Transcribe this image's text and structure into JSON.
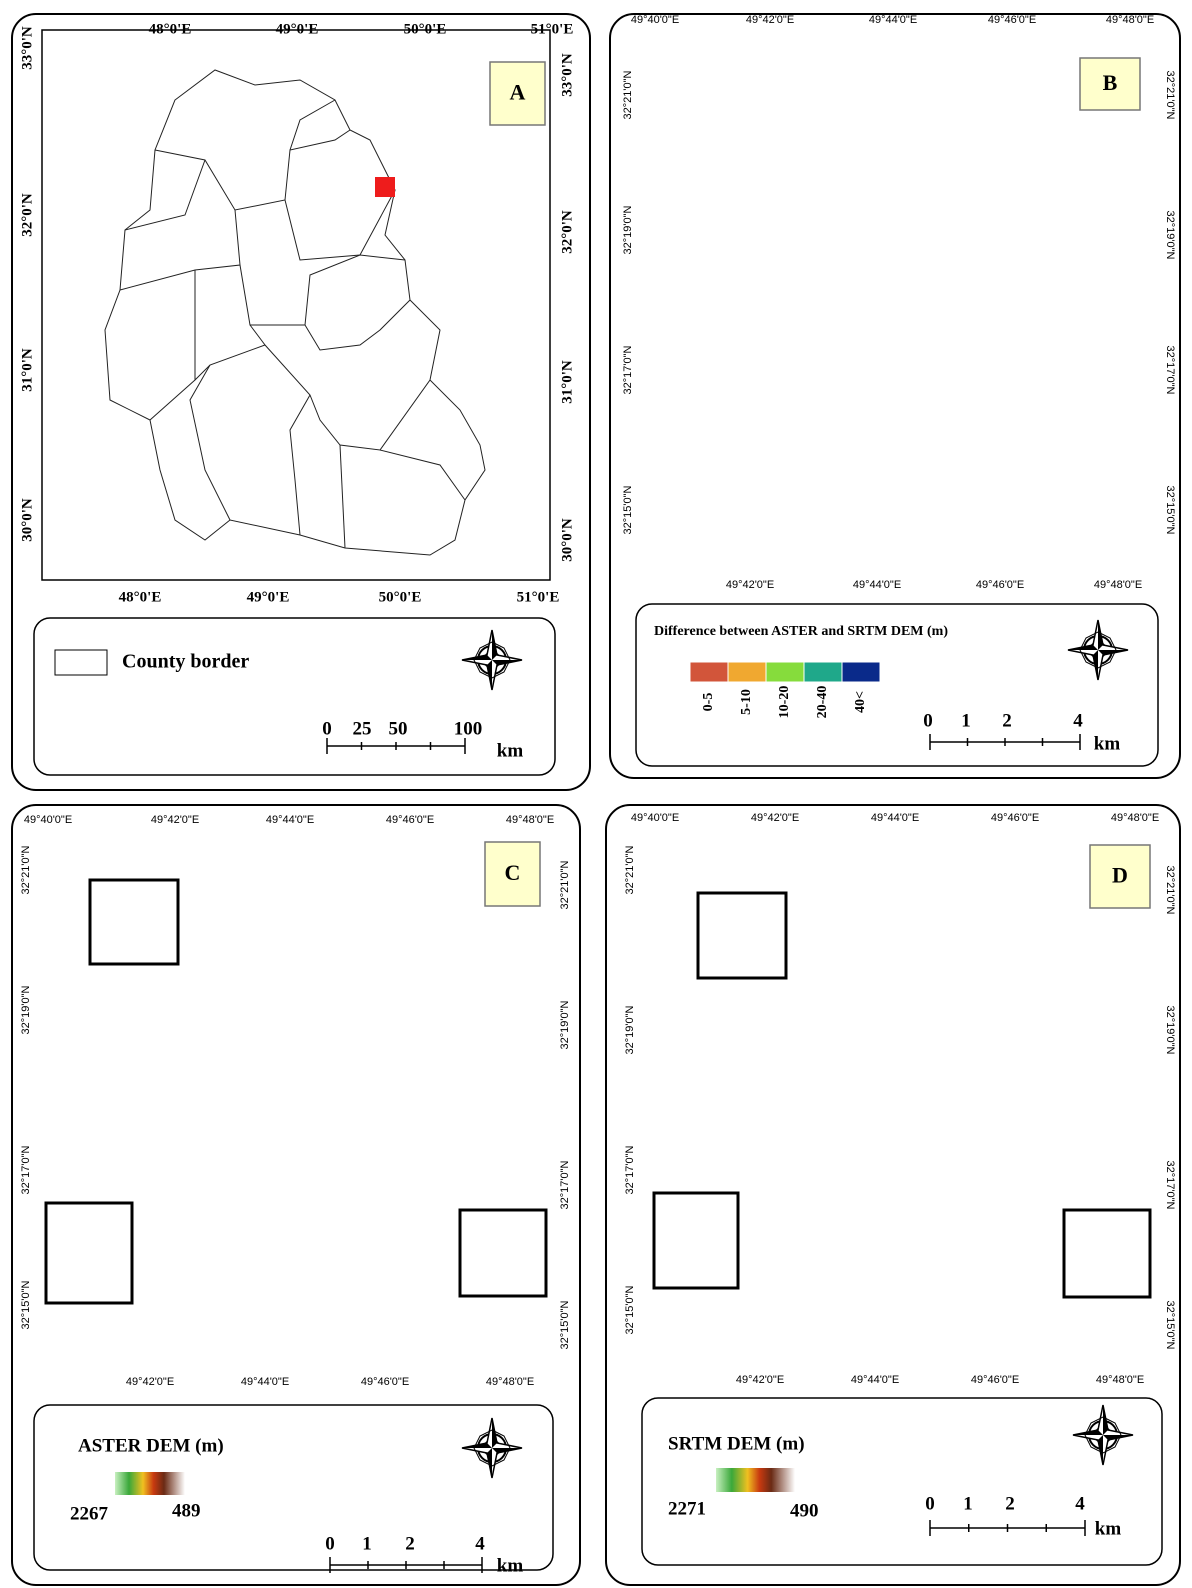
{
  "panels": [
    {
      "label": "A",
      "top_ticks": [
        "48°0'E",
        "49°0'E",
        "50°0'E",
        "51°0'E"
      ],
      "bottom_ticks": [
        "48°0'E",
        "49°0'E",
        "50°0'E",
        "51°0'E"
      ],
      "left_ticks": [
        "33°0'N",
        "32°0'N",
        "31°0'N",
        "30°0'N"
      ],
      "right_ticks": [
        "33°0'N",
        "32°0'N",
        "31°0'N",
        "30°0'N"
      ],
      "legend": {
        "items": [
          {
            "label": "County border"
          }
        ]
      },
      "scale_bar": {
        "labels": [
          0,
          25,
          50,
          100
        ],
        "unit": "km"
      }
    },
    {
      "label": "B",
      "top_ticks": [
        "49°40'0\"E",
        "49°42'0\"E",
        "49°44'0\"E",
        "49°46'0\"E",
        "49°48'0\"E"
      ],
      "bottom_ticks": [
        "49°42'0\"E",
        "49°44'0\"E",
        "49°46'0\"E",
        "49°48'0\"E"
      ],
      "left_ticks": [
        "32°21'0\"N",
        "32°19'0\"N",
        "32°17'0\"N",
        "32°15'0\"N"
      ],
      "right_ticks": [
        "32°21'0\"N",
        "32°19'0\"N",
        "32°17'0\"N",
        "32°15'0\"N"
      ],
      "legend": {
        "title": "Difference between ASTER and SRTM DEM (m)",
        "classes": [
          {
            "label": "0-5",
            "color": "#d2553a"
          },
          {
            "label": "5-10",
            "color": "#f0a830"
          },
          {
            "label": "10-20",
            "color": "#86dc3c"
          },
          {
            "label": "20-40",
            "color": "#1fa88a"
          },
          {
            "label": "40<",
            "color": "#0a2a8a"
          }
        ]
      },
      "scale_bar": {
        "labels": [
          0,
          1,
          2,
          4
        ],
        "unit": "km"
      }
    },
    {
      "label": "C",
      "top_ticks": [
        "49°40'0\"E",
        "49°42'0\"E",
        "49°44'0\"E",
        "49°46'0\"E",
        "49°48'0\"E"
      ],
      "bottom_ticks": [
        "49°42'0\"E",
        "49°44'0\"E",
        "49°46'0\"E",
        "49°48'0\"E"
      ],
      "left_ticks": [
        "32°21'0\"N",
        "32°19'0\"N",
        "32°17'0\"N",
        "32°15'0\"N"
      ],
      "right_ticks": [
        "32°21'0\"N",
        "32°19'0\"N",
        "32°17'0\"N",
        "32°15'0\"N"
      ],
      "legend": {
        "title": "ASTER DEM (m)",
        "min_label": 2267,
        "max_label": 489
      },
      "scale_bar": {
        "labels": [
          0,
          1,
          2,
          4
        ],
        "unit": "km"
      }
    },
    {
      "label": "D",
      "top_ticks": [
        "49°40'0\"E",
        "49°42'0\"E",
        "49°44'0\"E",
        "49°46'0\"E",
        "49°48'0\"E"
      ],
      "bottom_ticks": [
        "49°42'0\"E",
        "49°44'0\"E",
        "49°46'0\"E",
        "49°48'0\"E"
      ],
      "left_ticks": [
        "32°21'0\"N",
        "32°19'0\"N",
        "32°17'0\"N",
        "32°15'0\"N"
      ],
      "right_ticks": [
        "32°21'0\"N",
        "32°19'0\"N",
        "32°17'0\"N",
        "32°15'0\"N"
      ],
      "legend": {
        "title": "SRTM DEM (m)",
        "min_label": 2271,
        "max_label": 490
      },
      "scale_bar": {
        "labels": [
          0,
          1,
          2,
          4
        ],
        "unit": "km"
      }
    }
  ]
}
